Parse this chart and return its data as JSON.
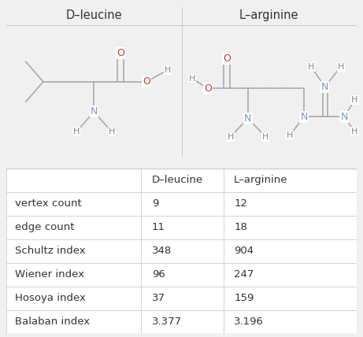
{
  "title_left": "D–leucine",
  "title_right": "L–arginine",
  "table_headers": [
    "",
    "D–leucine",
    "L–arginine"
  ],
  "table_rows": [
    [
      "vertex count",
      "9",
      "12"
    ],
    [
      "edge count",
      "11",
      "18"
    ],
    [
      "Schultz index",
      "348",
      "904"
    ],
    [
      "Wiener index",
      "96",
      "247"
    ],
    [
      "Hosoya index",
      "37",
      "159"
    ],
    [
      "Balaban index",
      "3.377",
      "3.196"
    ]
  ],
  "bg_color": "#f0f0f0",
  "panel_bg": "#ffffff",
  "border_color": "#cccccc",
  "text_color": "#333333",
  "atom_N_color": "#7799cc",
  "atom_O_color": "#cc3333",
  "atom_H_color": "#888888",
  "bond_color": "#aaaaaa",
  "title_fontsize": 10.5,
  "table_label_fontsize": 9.5,
  "table_value_fontsize": 9.5
}
